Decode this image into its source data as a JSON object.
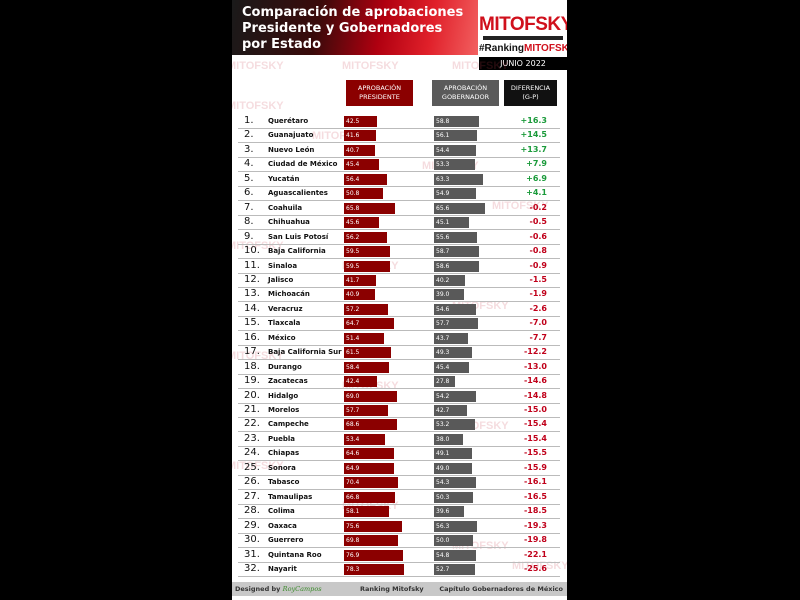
{
  "header": {
    "title": "Comparación de aprobaciones\nPresidente y Gobernadores\npor Estado",
    "logo": "MITOFSKY",
    "hashtag_prefix": "#Ranking",
    "hashtag_brand": "MITOFSKY",
    "date": "JUNIO 2022"
  },
  "watermark": "MITOFSKY",
  "colors": {
    "president": "#8b0000",
    "governor": "#595959",
    "positive": "#1a9a3a",
    "negative": "#c0001a"
  },
  "chart_data": {
    "type": "bar",
    "columns": [
      "APROBACIÓN\nPRESIDENTE",
      "APROBACIÓN\nGOBERNADOR",
      "DIFERENCIA\n(G-P)"
    ],
    "ranks": [
      "1.",
      "2.",
      "3.",
      "4.",
      "5.",
      "6.",
      "7.",
      "8.",
      "9.",
      "10.",
      "11.",
      "12.",
      "13.",
      "14.",
      "15.",
      "16.",
      "17.",
      "18.",
      "19.",
      "20.",
      "21.",
      "22.",
      "23.",
      "24.",
      "25.",
      "26.",
      "27.",
      "28.",
      "29.",
      "30.",
      "31.",
      "32."
    ],
    "categories": [
      "Querétaro",
      "Guanajuato",
      "Nuevo León",
      "Ciudad de México",
      "Yucatán",
      "Aguascalientes",
      "Coahuila",
      "Chihuahua",
      "San Luis Potosí",
      "Baja California",
      "Sinaloa",
      "Jalisco",
      "Michoacán",
      "Veracruz",
      "Tlaxcala",
      "México",
      "Baja California Sur",
      "Durango",
      "Zacatecas",
      "Hidalgo",
      "Morelos",
      "Campeche",
      "Puebla",
      "Chiapas",
      "Sonora",
      "Tabasco",
      "Tamaulipas",
      "Colima",
      "Oaxaca",
      "Guerrero",
      "Quintana Roo",
      "Nayarit"
    ],
    "series": [
      {
        "name": "APROBACIÓN PRESIDENTE",
        "values": [
          "42.5",
          "41.6",
          "40.7",
          "45.4",
          "56.4",
          "50.8",
          "65.8",
          "45.6",
          "56.2",
          "59.5",
          "59.5",
          "41.7",
          "40.9",
          "57.2",
          "64.7",
          "51.4",
          "61.5",
          "58.4",
          "42.4",
          "69.0",
          "57.7",
          "68.6",
          "53.4",
          "64.6",
          "64.9",
          "70.4",
          "66.8",
          "58.1",
          "75.6",
          "69.8",
          "76.9",
          "78.3"
        ]
      },
      {
        "name": "APROBACIÓN GOBERNADOR",
        "values": [
          "58.8",
          "56.1",
          "54.4",
          "53.3",
          "63.3",
          "54.9",
          "65.6",
          "45.1",
          "55.6",
          "58.7",
          "58.6",
          "40.2",
          "39.0",
          "54.6",
          "57.7",
          "43.7",
          "49.3",
          "45.4",
          "27.8",
          "54.2",
          "42.7",
          "53.2",
          "38.0",
          "49.1",
          "49.0",
          "54.3",
          "50.3",
          "39.6",
          "56.3",
          "50.0",
          "54.8",
          "52.7"
        ]
      },
      {
        "name": "DIFERENCIA (G-P)",
        "values": [
          "+16.3",
          "+14.5",
          "+13.7",
          "+7.9",
          "+6.9",
          "+4.1",
          "-0.2",
          "-0.5",
          "-0.6",
          "-0.8",
          "-0.9",
          "-1.5",
          "-1.9",
          "-2.6",
          "-7.0",
          "-7.7",
          "-12.2",
          "-13.0",
          "-14.6",
          "-14.8",
          "-15.0",
          "-15.4",
          "-15.4",
          "-15.5",
          "-15.9",
          "-16.1",
          "-16.5",
          "-18.5",
          "-19.3",
          "-19.8",
          "-22.1",
          "-25.6"
        ]
      }
    ]
  },
  "footer": {
    "designed_by": "Designed by",
    "designer": "RoyCampos",
    "center": "Ranking Mitofsky",
    "right": "Capítulo Gobernadores de México"
  }
}
